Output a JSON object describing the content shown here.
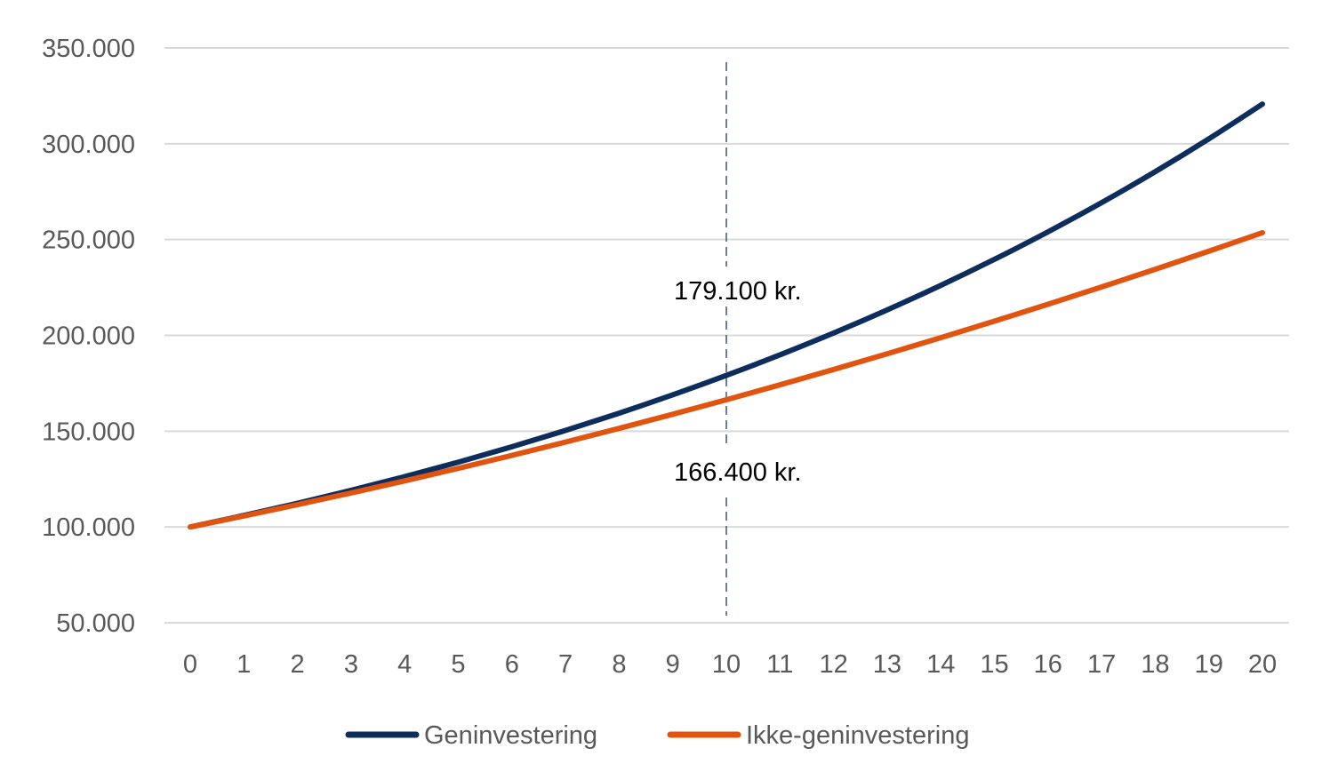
{
  "chart_data": {
    "type": "line",
    "title": "",
    "xlabel": "",
    "ylabel": "",
    "x": [
      0,
      1,
      2,
      3,
      4,
      5,
      6,
      7,
      8,
      9,
      10,
      11,
      12,
      13,
      14,
      15,
      16,
      17,
      18,
      19,
      20
    ],
    "ylim": [
      50000,
      350000
    ],
    "yticks": [
      50000,
      100000,
      150000,
      200000,
      250000,
      300000,
      350000
    ],
    "ytick_labels": [
      "50.000",
      "100.000",
      "150.000",
      "200.000",
      "250.000",
      "300.000",
      "350.000"
    ],
    "xtick_labels": [
      "0",
      "1",
      "2",
      "3",
      "4",
      "5",
      "6",
      "7",
      "8",
      "9",
      "10",
      "11",
      "12",
      "13",
      "14",
      "15",
      "16",
      "17",
      "18",
      "19",
      "20"
    ],
    "grid": true,
    "legend_position": "bottom",
    "series": [
      {
        "name": "Geninvestering",
        "color": "#0d2d5c",
        "values": [
          100000,
          106000,
          112360,
          119102,
          126248,
          133823,
          141852,
          150363,
          159385,
          168948,
          179085,
          189830,
          201220,
          213293,
          226090,
          239656,
          254035,
          269277,
          285434,
          302560,
          320714
        ]
      },
      {
        "name": "Ikke-geninvestering",
        "color": "#e1540f",
        "values": [
          100000,
          105704,
          111616,
          117736,
          124064,
          130600,
          137344,
          144296,
          151456,
          158824,
          166400,
          174184,
          182176,
          190376,
          198784,
          207400,
          216224,
          225256,
          234496,
          243944,
          253600
        ]
      }
    ],
    "annotations": [
      {
        "x": 10,
        "label": "179.100 kr."
      },
      {
        "x": 10,
        "label": "166.400 kr."
      }
    ]
  }
}
